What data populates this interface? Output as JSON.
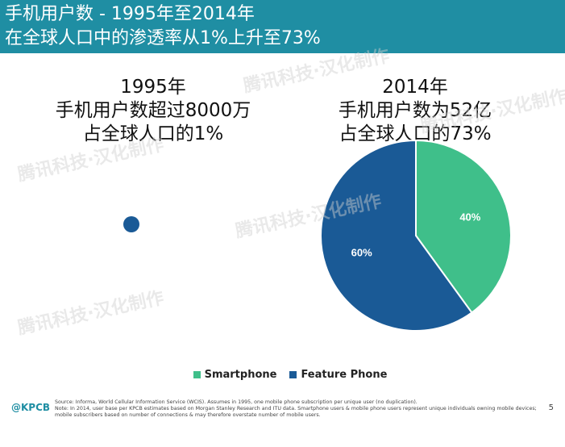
{
  "header": {
    "title_line1": "手机用户数 - 1995年至2014年",
    "title_line2": "在全球人口中的渗透率从1%上升至73%",
    "background": "#1f8ea3"
  },
  "left_panel": {
    "line1": "1995年",
    "line2": "手机用户数超过8000万",
    "line3": "占全球人口的1%"
  },
  "right_panel": {
    "line1": "2014年",
    "line2": "手机用户数为52亿",
    "line3": "占全球人口的73%"
  },
  "chart_data": [
    {
      "type": "pie",
      "title": "1995年",
      "slices": [
        {
          "name": "Feature Phone",
          "value": 100,
          "color": "#1a5a96"
        }
      ]
    },
    {
      "type": "pie",
      "title": "2014年",
      "slices": [
        {
          "name": "Smartphone",
          "value": 40,
          "label": "40%",
          "color": "#3fbf8a"
        },
        {
          "name": "Feature Phone",
          "value": 60,
          "label": "60%",
          "color": "#1a5a96"
        }
      ],
      "legend": [
        "Smartphone",
        "Feature Phone"
      ],
      "legend_placement": "bottom"
    }
  ],
  "legend": {
    "smartphone": "Smartphone",
    "feature_phone": "Feature Phone",
    "smartphone_color": "#3fbf8a",
    "feature_phone_color": "#1a5a96"
  },
  "footer": {
    "logo": "@KPCB",
    "source": "Source: Informa, World Cellular Information Service (WCIS). Assumes in 1995, one mobile phone subscription per unique user (no duplication).",
    "note": "Note: In 2014, user base per KPCB estimates based on Morgan Stanley Research and ITU data. Smartphone users & mobile phone users represent unique individuals owning mobile devices; mobile subscribers based on number of connections & may therefore overstate number of mobile users.",
    "page_number": "5"
  },
  "watermark": {
    "text": "腾讯科技·汉化制作"
  }
}
